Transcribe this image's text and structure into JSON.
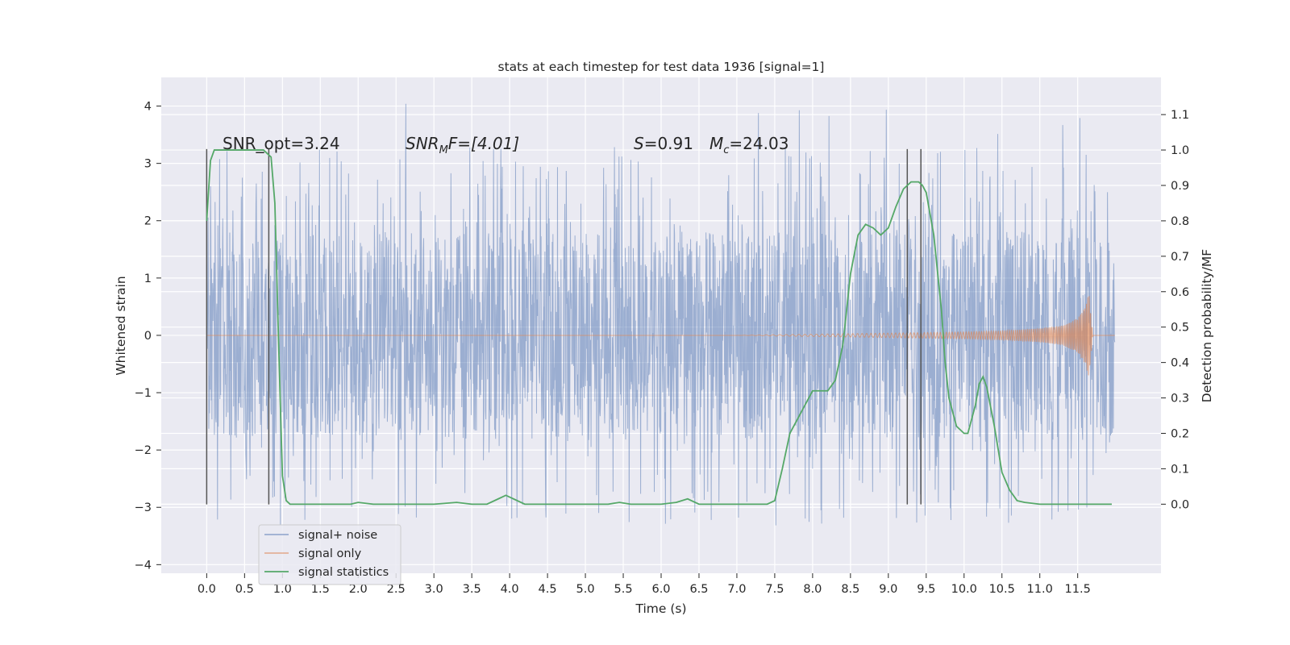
{
  "chart_data": {
    "type": "line",
    "title": "stats at each timestep for test data 1936 [signal=1]",
    "xlabel": "Time (s)",
    "ylabel": "Whitened strain",
    "ylabel_right": "Detection probability/MF",
    "xlim": [
      -0.6,
      12.6
    ],
    "ylim": [
      -4.15,
      4.5
    ],
    "ylim_right": [
      -0.195,
      1.205
    ],
    "x_ticks": [
      "0.0",
      "0.5",
      "1.0",
      "1.5",
      "2.0",
      "2.5",
      "3.0",
      "3.5",
      "4.0",
      "4.5",
      "5.0",
      "5.5",
      "6.0",
      "6.5",
      "7.0",
      "7.5",
      "8.0",
      "8.5",
      "9.0",
      "9.5",
      "10.0",
      "10.5",
      "11.0",
      "11.5"
    ],
    "y_ticks": [
      "4",
      "3",
      "2",
      "1",
      "0",
      "−1",
      "−2",
      "−3",
      "−4"
    ],
    "y_ticks_right": [
      "1.1",
      "1.0",
      "0.9",
      "0.8",
      "0.7",
      "0.6",
      "0.5",
      "0.4",
      "0.3",
      "0.2",
      "0.1",
      "0.0"
    ],
    "grid": true,
    "legend_position": "lower-left",
    "colors": {
      "noise": "#4c72b0",
      "signal": "#dd8452",
      "stats": "#55a868",
      "axes_bg": "#eaeaf2",
      "grid": "#ffffff",
      "markers": "#555555"
    },
    "annotations": {
      "snr_opt": "SNR_opt=3.24",
      "snr_mf_main": "SNR",
      "snr_mf_sub": "M",
      "snr_mf_tail": "F=[4.01]",
      "s_main": "S",
      "s_tail": "=0.91",
      "mc_main": "M",
      "mc_sub": "c",
      "mc_tail": "=24.03"
    },
    "series": [
      {
        "name": "signal+ noise",
        "description_range": "dense noise between about -3.6 and 4.1, core band about -1.8 to 1.8",
        "x_range": [
          0.0,
          11.99
        ],
        "core_amplitude": 1.8,
        "spike_max": 4.1,
        "spike_min": -3.6
      },
      {
        "name": "signal only",
        "x": [
          0.0,
          7.0,
          7.5,
          8.0,
          8.5,
          9.0,
          9.5,
          10.0,
          10.5,
          11.0,
          11.3,
          11.5,
          11.6,
          11.65,
          11.7
        ],
        "envelope": [
          0.0,
          0.0,
          0.01,
          0.02,
          0.03,
          0.04,
          0.05,
          0.06,
          0.08,
          0.12,
          0.17,
          0.3,
          0.5,
          0.75,
          0.0
        ]
      },
      {
        "name": "signal statistics",
        "x": [
          0.0,
          0.05,
          0.1,
          0.15,
          0.2,
          0.3,
          0.4,
          0.5,
          0.6,
          0.7,
          0.75,
          0.8,
          0.85,
          0.9,
          0.95,
          1.0,
          1.05,
          1.1,
          1.2,
          1.5,
          1.9,
          2.0,
          2.2,
          2.5,
          3.0,
          3.3,
          3.5,
          3.7,
          3.85,
          3.95,
          4.05,
          4.2,
          4.5,
          5.0,
          5.3,
          5.45,
          5.6,
          5.8,
          6.0,
          6.2,
          6.35,
          6.5,
          6.8,
          7.2,
          7.4,
          7.5,
          7.6,
          7.7,
          7.8,
          8.0,
          8.1,
          8.2,
          8.3,
          8.4,
          8.5,
          8.6,
          8.7,
          8.8,
          8.9,
          9.0,
          9.1,
          9.2,
          9.3,
          9.4,
          9.45,
          9.5,
          9.55,
          9.6,
          9.7,
          9.75,
          9.8,
          9.9,
          10.0,
          10.05,
          10.1,
          10.15,
          10.2,
          10.25,
          10.3,
          10.4,
          10.5,
          10.6,
          10.7,
          10.8,
          11.0,
          11.5,
          11.95
        ],
        "values": [
          0.8,
          0.97,
          1.0,
          1.0,
          1.0,
          1.0,
          1.0,
          1.0,
          1.0,
          1.0,
          1.0,
          0.99,
          0.98,
          0.85,
          0.45,
          0.08,
          0.01,
          0.0,
          0.0,
          0.0,
          0.0,
          0.005,
          0.0,
          0.0,
          0.0,
          0.005,
          0.0,
          0.0,
          0.015,
          0.025,
          0.015,
          0.0,
          0.0,
          0.0,
          0.0,
          0.005,
          0.0,
          0.0,
          0.0,
          0.005,
          0.015,
          0.0,
          0.0,
          0.0,
          0.0,
          0.01,
          0.1,
          0.2,
          0.24,
          0.32,
          0.32,
          0.32,
          0.35,
          0.45,
          0.65,
          0.76,
          0.79,
          0.78,
          0.76,
          0.78,
          0.84,
          0.89,
          0.91,
          0.91,
          0.9,
          0.88,
          0.82,
          0.76,
          0.55,
          0.4,
          0.3,
          0.22,
          0.2,
          0.2,
          0.24,
          0.28,
          0.34,
          0.36,
          0.33,
          0.22,
          0.09,
          0.04,
          0.01,
          0.005,
          0.0,
          0.0,
          0.0
        ]
      }
    ],
    "vertical_lines": [
      {
        "x": 0.0,
        "y_range": [
          -2.95,
          3.25
        ]
      },
      {
        "x": 0.82,
        "y_range": [
          -2.95,
          3.25
        ]
      },
      {
        "x": 9.25,
        "y_range": [
          -2.95,
          3.25
        ]
      },
      {
        "x": 9.43,
        "y_range": [
          -2.95,
          3.25
        ]
      }
    ]
  }
}
